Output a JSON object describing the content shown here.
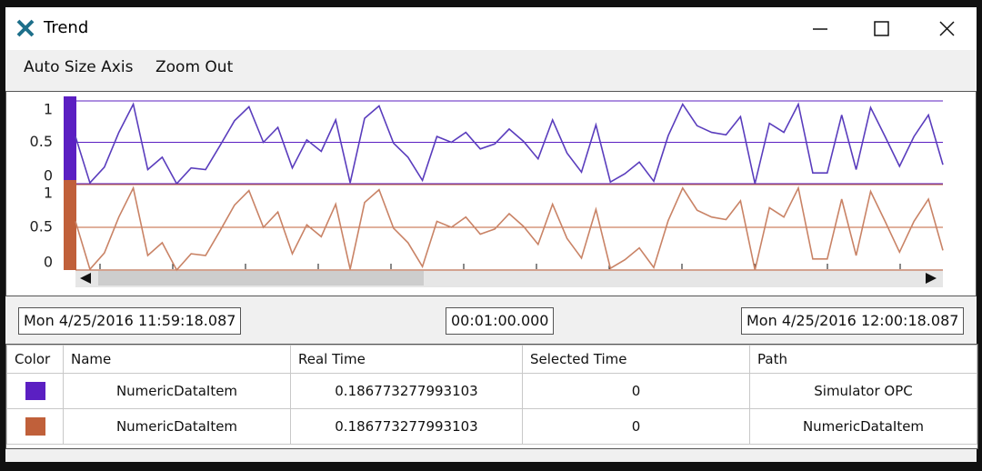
{
  "window": {
    "title": "Trend"
  },
  "menu": [
    "Auto Size Axis",
    "Zoom Out"
  ],
  "trend": {
    "panes": [
      {
        "color": "#5b1fc2",
        "line_color": "#5a3dbd",
        "ylim": [
          0,
          1
        ],
        "yticks": [
          0,
          0.5,
          1
        ],
        "values": [
          0.57,
          0.01,
          0.2,
          0.62,
          0.96,
          0.17,
          0.32,
          0,
          0.19,
          0.17,
          0.46,
          0.76,
          0.93,
          0.5,
          0.68,
          0.19,
          0.53,
          0.39,
          0.77,
          0.01,
          0.79,
          0.94,
          0.49,
          0.32,
          0.04,
          0.57,
          0.5,
          0.62,
          0.42,
          0.48,
          0.66,
          0.51,
          0.3,
          0.77,
          0.37,
          0.14,
          0.71,
          0.02,
          0.12,
          0.26,
          0.03,
          0.58,
          0.96,
          0.7,
          0.62,
          0.59,
          0.81,
          0,
          0.73,
          0.62,
          0.96,
          0.13,
          0.13,
          0.83,
          0.17,
          0.92,
          0.57,
          0.21,
          0.57,
          0.83,
          0.23
        ]
      },
      {
        "color": "#c0603a",
        "line_color": "#c98366",
        "ylim": [
          0,
          1
        ],
        "yticks": [
          0,
          0.5,
          1
        ],
        "values": [
          0.57,
          0.01,
          0.2,
          0.62,
          0.96,
          0.17,
          0.32,
          0,
          0.19,
          0.17,
          0.46,
          0.76,
          0.93,
          0.5,
          0.68,
          0.19,
          0.53,
          0.39,
          0.77,
          0.01,
          0.79,
          0.94,
          0.49,
          0.32,
          0.04,
          0.57,
          0.5,
          0.62,
          0.42,
          0.48,
          0.66,
          0.51,
          0.3,
          0.77,
          0.37,
          0.14,
          0.71,
          0.02,
          0.12,
          0.26,
          0.03,
          0.58,
          0.96,
          0.7,
          0.62,
          0.59,
          0.81,
          0,
          0.73,
          0.62,
          0.96,
          0.13,
          0.13,
          0.83,
          0.17,
          0.92,
          0.57,
          0.21,
          0.57,
          0.83,
          0.23
        ]
      }
    ]
  },
  "time_range": {
    "start": "Mon 4/25/2016 11:59:18.087",
    "span": "00:01:00.000",
    "end": "Mon 4/25/2016 12:00:18.087"
  },
  "table": {
    "columns": [
      "Color",
      "Name",
      "Real Time",
      "Selected Time",
      "Path"
    ],
    "rows": [
      {
        "color": "#5b1fc2",
        "cells": [
          "NumericDataItem",
          "0.186773277993103",
          "0",
          "Simulator OPC"
        ]
      },
      {
        "color": "#c0603a",
        "cells": [
          "NumericDataItem",
          "0.186773277993103",
          "0",
          "NumericDataItem"
        ]
      }
    ]
  }
}
